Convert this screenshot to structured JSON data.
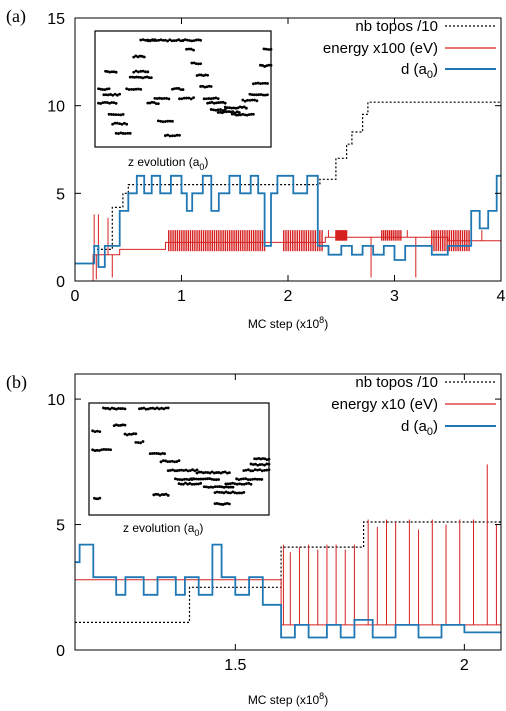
{
  "chart_data": [
    {
      "type": "line",
      "panel_label": "(a)",
      "xlabel": "MC step (x10",
      "xlabel_sup": "8",
      "xlabel_end": ")",
      "ylabel": "",
      "xlim": [
        0,
        4
      ],
      "ylim": [
        0,
        15
      ],
      "xticks": [
        0,
        1,
        2,
        3,
        4
      ],
      "xtick_labels": [
        "0",
        "1",
        "2",
        "3",
        "4"
      ],
      "yticks": [
        0,
        5,
        10,
        15
      ],
      "ytick_labels": [
        "0",
        "5",
        "10",
        "15"
      ],
      "legend_position": "top-right",
      "inset_label": "z evolution (a",
      "inset_label_sub": "0",
      "inset_label_end": ")",
      "series": [
        {
          "name": "nb topos /10",
          "color": "#000000",
          "style": "dotted",
          "points": [
            [
              0,
              1
            ],
            [
              0.18,
              1
            ],
            [
              0.18,
              1.8
            ],
            [
              0.35,
              1.8
            ],
            [
              0.35,
              4.2
            ],
            [
              0.45,
              4.2
            ],
            [
              0.45,
              5.0
            ],
            [
              0.5,
              5.0
            ],
            [
              0.5,
              5.5
            ],
            [
              2.3,
              5.5
            ],
            [
              2.3,
              5.8
            ],
            [
              2.45,
              5.8
            ],
            [
              2.45,
              7.0
            ],
            [
              2.55,
              7.0
            ],
            [
              2.55,
              7.8
            ],
            [
              2.6,
              7.8
            ],
            [
              2.6,
              8.5
            ],
            [
              2.7,
              8.5
            ],
            [
              2.7,
              9.5
            ],
            [
              2.75,
              9.5
            ],
            [
              2.75,
              10.2
            ],
            [
              4,
              10.2
            ]
          ]
        },
        {
          "name": "energy x100 (eV)",
          "color": "#d62020",
          "style": "solid",
          "base": [
            [
              0,
              0
            ],
            [
              0.17,
              0
            ],
            [
              0.17,
              1.5
            ],
            [
              0.42,
              1.5
            ],
            [
              0.42,
              1.8
            ],
            [
              0.85,
              1.8
            ],
            [
              0.85,
              2.2
            ],
            [
              2.35,
              2.2
            ],
            [
              2.35,
              2.5
            ],
            [
              3.5,
              2.5
            ],
            [
              3.5,
              2.3
            ],
            [
              4,
              2.3
            ]
          ],
          "bands": [
            [
              0.88,
              1.78,
              1.7,
              2.9
            ],
            [
              1.96,
              2.32,
              1.7,
              2.9
            ],
            [
              2.45,
              2.55,
              2.3,
              2.9
            ],
            [
              2.88,
              3.06,
              2.3,
              2.9
            ],
            [
              3.35,
              3.7,
              1.7,
              2.9
            ]
          ],
          "spikes": [
            [
              0.18,
              3.8
            ],
            [
              0.2,
              0.1
            ],
            [
              0.22,
              3.8
            ],
            [
              0.31,
              3.6
            ],
            [
              0.35,
              0.2
            ],
            [
              2.38,
              2.9
            ],
            [
              2.62,
              2.5
            ],
            [
              2.78,
              0.2
            ],
            [
              3.2,
              0.2
            ],
            [
              3.12,
              2.9
            ],
            [
              3.82,
              2.9
            ]
          ]
        },
        {
          "name": "d (a",
          "name_sub": "0",
          "name_end": ")",
          "color": "#1f77b4",
          "style": "solid",
          "points": [
            [
              0,
              1
            ],
            [
              0.18,
              1
            ],
            [
              0.18,
              2
            ],
            [
              0.22,
              2
            ],
            [
              0.22,
              0.8
            ],
            [
              0.28,
              0.8
            ],
            [
              0.28,
              2
            ],
            [
              0.42,
              2
            ],
            [
              0.42,
              4
            ],
            [
              0.5,
              4
            ],
            [
              0.5,
              5
            ],
            [
              0.58,
              5
            ],
            [
              0.58,
              6
            ],
            [
              0.65,
              6
            ],
            [
              0.65,
              5
            ],
            [
              0.72,
              5
            ],
            [
              0.72,
              6
            ],
            [
              0.8,
              6
            ],
            [
              0.8,
              5
            ],
            [
              0.9,
              5
            ],
            [
              0.9,
              6
            ],
            [
              1.0,
              6
            ],
            [
              1.0,
              5
            ],
            [
              1.05,
              5
            ],
            [
              1.05,
              4
            ],
            [
              1.1,
              4
            ],
            [
              1.1,
              5
            ],
            [
              1.2,
              5
            ],
            [
              1.2,
              6
            ],
            [
              1.28,
              6
            ],
            [
              1.28,
              4
            ],
            [
              1.35,
              4
            ],
            [
              1.35,
              5
            ],
            [
              1.45,
              5
            ],
            [
              1.45,
              6
            ],
            [
              1.55,
              6
            ],
            [
              1.55,
              5
            ],
            [
              1.65,
              5
            ],
            [
              1.65,
              6
            ],
            [
              1.72,
              6
            ],
            [
              1.72,
              5
            ],
            [
              1.78,
              5
            ],
            [
              1.78,
              2
            ],
            [
              1.84,
              2
            ],
            [
              1.84,
              5
            ],
            [
              1.9,
              5
            ],
            [
              1.9,
              6
            ],
            [
              2.05,
              6
            ],
            [
              2.05,
              5
            ],
            [
              2.18,
              5
            ],
            [
              2.18,
              6
            ],
            [
              2.28,
              6
            ],
            [
              2.28,
              2
            ],
            [
              2.38,
              2
            ],
            [
              2.38,
              1.5
            ],
            [
              2.5,
              1.5
            ],
            [
              2.5,
              2
            ],
            [
              2.6,
              2
            ],
            [
              2.6,
              1.5
            ],
            [
              2.7,
              1.5
            ],
            [
              2.7,
              2
            ],
            [
              2.8,
              2
            ],
            [
              2.8,
              1.5
            ],
            [
              2.9,
              1.5
            ],
            [
              2.9,
              2
            ],
            [
              3.0,
              2
            ],
            [
              3.0,
              1.2
            ],
            [
              3.1,
              1.2
            ],
            [
              3.1,
              2
            ],
            [
              3.35,
              2
            ],
            [
              3.35,
              1.5
            ],
            [
              3.5,
              1.5
            ],
            [
              3.5,
              2
            ],
            [
              3.72,
              2
            ],
            [
              3.72,
              4
            ],
            [
              3.8,
              4
            ],
            [
              3.8,
              3
            ],
            [
              3.88,
              3
            ],
            [
              3.88,
              4
            ],
            [
              3.96,
              4
            ],
            [
              3.96,
              6
            ],
            [
              4,
              6
            ]
          ]
        }
      ]
    },
    {
      "type": "line",
      "panel_label": "(b)",
      "xlabel": "MC step (x10",
      "xlabel_sup": "8",
      "xlabel_end": ")",
      "ylabel": "",
      "xlim": [
        1.15,
        2.08
      ],
      "ylim": [
        0,
        11
      ],
      "xticks": [
        1.5,
        2.0
      ],
      "xtick_labels": [
        "1.5",
        "2"
      ],
      "yticks": [
        0,
        5,
        10
      ],
      "ytick_labels": [
        "0",
        "5",
        "10"
      ],
      "legend_position": "top-right",
      "inset_label": "z evolution (a",
      "inset_label_sub": "0",
      "inset_label_end": ")",
      "series": [
        {
          "name": "nb topos /10",
          "color": "#000000",
          "style": "dotted",
          "points": [
            [
              1.15,
              1.1
            ],
            [
              1.4,
              1.1
            ],
            [
              1.4,
              2.5
            ],
            [
              1.6,
              2.5
            ],
            [
              1.6,
              4.1
            ],
            [
              1.78,
              4.1
            ],
            [
              1.78,
              5.1
            ],
            [
              2.08,
              5.1
            ]
          ]
        },
        {
          "name": "energy x10 (eV)",
          "color": "#d62020",
          "style": "solid",
          "base": [
            [
              1.15,
              2.8
            ],
            [
              1.6,
              2.8
            ],
            [
              1.6,
              1.0
            ],
            [
              2.08,
              1.0
            ]
          ],
          "spikes": [
            [
              1.605,
              4.2
            ],
            [
              1.62,
              3.9
            ],
            [
              1.64,
              4.1
            ],
            [
              1.66,
              4.2
            ],
            [
              1.68,
              4.0
            ],
            [
              1.7,
              4.2
            ],
            [
              1.72,
              4.2
            ],
            [
              1.74,
              4.0
            ],
            [
              1.76,
              4.2
            ],
            [
              1.79,
              5.2
            ],
            [
              1.81,
              4.9
            ],
            [
              1.83,
              5.2
            ],
            [
              1.85,
              5.1
            ],
            [
              1.88,
              5.2
            ],
            [
              1.9,
              4.8
            ],
            [
              1.93,
              5.2
            ],
            [
              1.96,
              5.0
            ],
            [
              1.99,
              5.2
            ],
            [
              2.02,
              5.2
            ],
            [
              2.05,
              7.4
            ],
            [
              2.07,
              5.0
            ]
          ]
        },
        {
          "name": "d (a",
          "name_sub": "0",
          "name_end": ")",
          "color": "#1f77b4",
          "style": "solid",
          "points": [
            [
              1.15,
              3.5
            ],
            [
              1.16,
              3.5
            ],
            [
              1.16,
              4.2
            ],
            [
              1.19,
              4.2
            ],
            [
              1.19,
              2.9
            ],
            [
              1.24,
              2.9
            ],
            [
              1.24,
              2.2
            ],
            [
              1.26,
              2.2
            ],
            [
              1.26,
              2.9
            ],
            [
              1.3,
              2.9
            ],
            [
              1.3,
              2.2
            ],
            [
              1.33,
              2.2
            ],
            [
              1.33,
              2.9
            ],
            [
              1.37,
              2.9
            ],
            [
              1.37,
              2.2
            ],
            [
              1.39,
              2.2
            ],
            [
              1.39,
              2.9
            ],
            [
              1.42,
              2.9
            ],
            [
              1.42,
              2.2
            ],
            [
              1.45,
              2.2
            ],
            [
              1.45,
              4.2
            ],
            [
              1.47,
              4.2
            ],
            [
              1.47,
              2.9
            ],
            [
              1.5,
              2.9
            ],
            [
              1.5,
              2.2
            ],
            [
              1.53,
              2.2
            ],
            [
              1.53,
              2.9
            ],
            [
              1.56,
              2.9
            ],
            [
              1.56,
              1.8
            ],
            [
              1.6,
              1.8
            ],
            [
              1.6,
              0.5
            ],
            [
              1.63,
              0.5
            ],
            [
              1.63,
              1.0
            ],
            [
              1.66,
              1.0
            ],
            [
              1.66,
              0.5
            ],
            [
              1.7,
              0.5
            ],
            [
              1.7,
              1.0
            ],
            [
              1.73,
              1.0
            ],
            [
              1.73,
              0.5
            ],
            [
              1.76,
              0.5
            ],
            [
              1.76,
              1.2
            ],
            [
              1.8,
              1.2
            ],
            [
              1.8,
              0.5
            ],
            [
              1.85,
              0.5
            ],
            [
              1.85,
              1.0
            ],
            [
              1.9,
              1.0
            ],
            [
              1.9,
              0.5
            ],
            [
              1.95,
              0.5
            ],
            [
              1.95,
              1.0
            ],
            [
              2.0,
              1.0
            ],
            [
              2.0,
              0.7
            ],
            [
              2.08,
              0.7
            ]
          ]
        }
      ]
    }
  ]
}
